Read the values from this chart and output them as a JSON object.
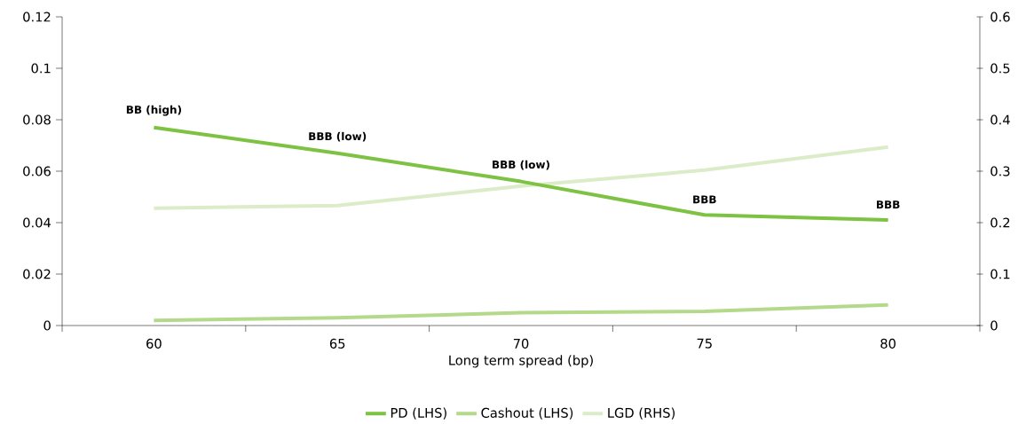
{
  "chart_data": {
    "type": "line",
    "xlabel": "Long term spread (bp)",
    "categories": [
      "60",
      "65",
      "70",
      "75",
      "80"
    ],
    "series": [
      {
        "name": "PD (LHS)",
        "color": "#7dc242",
        "values": [
          0.077,
          0.067,
          0.056,
          0.043,
          0.041
        ]
      },
      {
        "name": "Cashout (LHS)",
        "color": "#b5d98a",
        "values": [
          0.002,
          0.003,
          0.005,
          0.0055,
          0.008
        ]
      },
      {
        "name": "LGD (RHS)",
        "color": "#dcecc8",
        "values": [
          0.228,
          0.233,
          0.271,
          0.302,
          0.347
        ],
        "axis": "y2"
      }
    ],
    "ylim": [
      0,
      0.12
    ],
    "yticks": [
      0,
      0.02,
      0.04,
      0.06,
      0.08,
      0.1,
      0.12
    ],
    "y2lim": [
      0,
      0.6
    ],
    "y2ticks": [
      0,
      0.1,
      0.2,
      0.3,
      0.4,
      0.5,
      0.6
    ],
    "annotations": [
      {
        "text": "BB (high)",
        "x": "60",
        "y": 0.077
      },
      {
        "text": "BBB (low)",
        "x": "65",
        "y": 0.067
      },
      {
        "text": "BBB (low)",
        "x": "70",
        "y": 0.056
      },
      {
        "text": "BBB",
        "x": "75",
        "y": 0.043
      },
      {
        "text": "BBB",
        "x": "80",
        "y": 0.041
      }
    ],
    "legend": "bottom",
    "grid": false,
    "marker": "none",
    "line_style": "solid"
  }
}
